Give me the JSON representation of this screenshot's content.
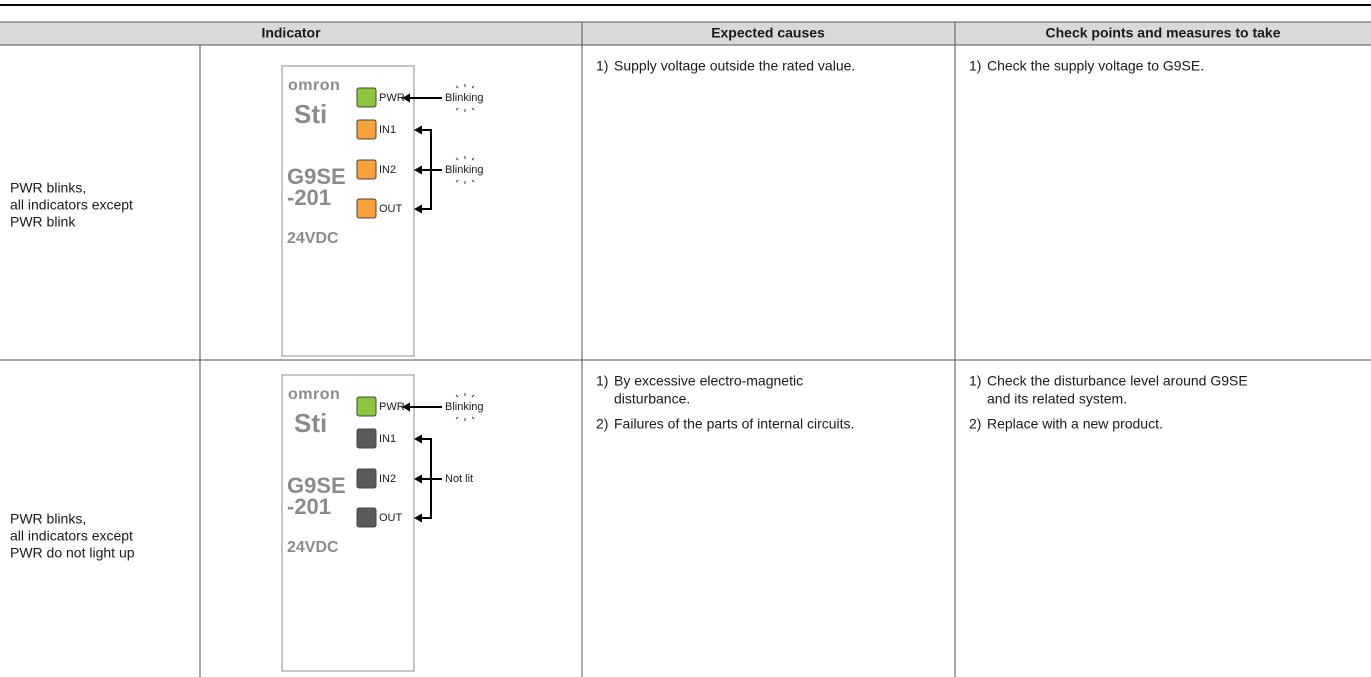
{
  "table": {
    "headers": [
      "Indicator",
      "Expected causes",
      "Check points and measures to take"
    ],
    "rows": [
      {
        "condition": [
          "PWR blinks,",
          "all indicators except",
          "PWR blink"
        ],
        "device": {
          "brand": "omron",
          "logo": "Sti",
          "model": [
            "G9SE",
            "-201"
          ],
          "voltage": "24VDC",
          "leds": [
            "PWR",
            "IN1",
            "IN2",
            "OUT"
          ],
          "led_colors": [
            "#8cc63f",
            "#f7a23b",
            "#f7a23b",
            "#f7a23b"
          ],
          "pwr_state": "Blinking",
          "others_state": "Blinking"
        },
        "causes": [
          {
            "number": "1)",
            "lines": [
              "Supply voltage outside the rated value."
            ]
          }
        ],
        "measures": [
          {
            "number": "1)",
            "lines": [
              "Check the supply voltage to G9SE."
            ]
          }
        ]
      },
      {
        "condition": [
          "PWR blinks,",
          "all indicators except",
          "PWR do not light up"
        ],
        "device": {
          "brand": "omron",
          "logo": "Sti",
          "model": [
            "G9SE",
            "-201"
          ],
          "voltage": "24VDC",
          "leds": [
            "PWR",
            "IN1",
            "IN2",
            "OUT"
          ],
          "led_colors": [
            "#8cc63f",
            "#5a5a5a",
            "#5a5a5a",
            "#5a5a5a"
          ],
          "pwr_state": "Blinking",
          "others_state": "Not lit"
        },
        "causes": [
          {
            "number": "1)",
            "lines": [
              "By excessive electro-magnetic",
              "disturbance."
            ]
          },
          {
            "number": "2)",
            "lines": [
              "Failures of the parts of internal circuits."
            ]
          }
        ],
        "measures": [
          {
            "number": "1)",
            "lines": [
              "Check the disturbance level around G9SE",
              "and its related system."
            ]
          },
          {
            "number": "2)",
            "lines": [
              "Replace with a new product."
            ]
          }
        ]
      }
    ]
  }
}
